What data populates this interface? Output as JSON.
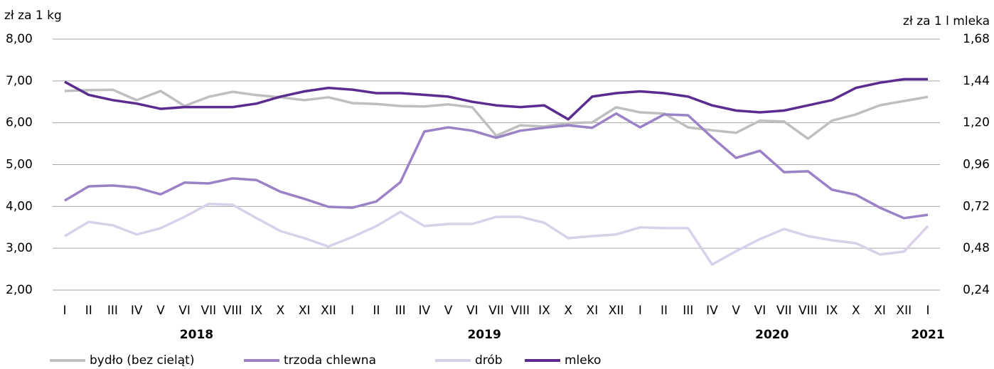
{
  "chart_data": {
    "type": "line",
    "y_label": "zł za 1 kg",
    "y2_label": "zł za 1 l mleka",
    "categories": [
      "I",
      "II",
      "III",
      "IV",
      "V",
      "VI",
      "VII",
      "VIII",
      "IX",
      "X",
      "XI",
      "XII",
      "I",
      "II",
      "III",
      "IV",
      "V",
      "VI",
      "VII",
      "VIII",
      "IX",
      "X",
      "XI",
      "XII",
      "I",
      "II",
      "III",
      "IV",
      "V",
      "VI",
      "VII",
      "VIII",
      "IX",
      "X",
      "XI",
      "XII",
      "I"
    ],
    "category_groups": [
      {
        "label": "2018",
        "from": 0,
        "to": 11
      },
      {
        "label": "2019",
        "from": 12,
        "to": 23
      },
      {
        "label": "2020",
        "from": 24,
        "to": 35
      },
      {
        "label": "2021",
        "from": 36,
        "to": 36
      }
    ],
    "ylim": [
      2,
      8
    ],
    "yticks": [
      {
        "value": 2,
        "label": "2,00"
      },
      {
        "value": 3,
        "label": "3,00"
      },
      {
        "value": 4,
        "label": "4,00"
      },
      {
        "value": 5,
        "label": "5,00"
      },
      {
        "value": 6,
        "label": "6,00"
      },
      {
        "value": 7,
        "label": "7,00"
      },
      {
        "value": 8,
        "label": "8,00"
      }
    ],
    "y2lim": [
      0.24,
      1.68
    ],
    "y2ticks": [
      {
        "value": 0.24,
        "label": "0,24"
      },
      {
        "value": 0.48,
        "label": "0,48"
      },
      {
        "value": 0.72,
        "label": "0,72"
      },
      {
        "value": 0.96,
        "label": "0,96"
      },
      {
        "value": 1.2,
        "label": "1,20"
      },
      {
        "value": 1.44,
        "label": "1,44"
      },
      {
        "value": 1.68,
        "label": "1,68"
      }
    ],
    "grid": true,
    "legend": "bottom",
    "series": [
      {
        "name": "bydło (bez cieląt)",
        "color": "#bfbfbf",
        "axis": "y",
        "values": [
          6.76,
          6.78,
          6.79,
          6.54,
          6.76,
          6.4,
          6.62,
          6.74,
          6.66,
          6.61,
          6.54,
          6.61,
          6.47,
          6.45,
          6.4,
          6.39,
          6.44,
          6.37,
          5.69,
          5.94,
          5.91,
          5.99,
          6.01,
          6.37,
          6.25,
          6.22,
          5.89,
          5.82,
          5.76,
          6.05,
          6.03,
          5.62,
          6.05,
          6.2,
          6.42,
          6.52,
          6.62
        ]
      },
      {
        "name": "trzoda chlewna",
        "color": "#9b82c6",
        "axis": "y",
        "values": [
          4.14,
          4.48,
          4.5,
          4.45,
          4.29,
          4.57,
          4.55,
          4.67,
          4.63,
          4.35,
          4.18,
          3.99,
          3.97,
          4.12,
          4.58,
          5.79,
          5.89,
          5.81,
          5.64,
          5.81,
          5.88,
          5.94,
          5.88,
          6.22,
          5.89,
          6.2,
          6.18,
          5.65,
          5.16,
          5.33,
          4.82,
          4.84,
          4.4,
          4.28,
          3.97,
          3.72,
          3.8
        ]
      },
      {
        "name": "drób",
        "color": "#d9d0ea",
        "axis": "y",
        "values": [
          3.29,
          3.63,
          3.55,
          3.33,
          3.48,
          3.75,
          4.06,
          4.04,
          3.72,
          3.41,
          3.24,
          3.04,
          3.27,
          3.53,
          3.87,
          3.53,
          3.58,
          3.58,
          3.75,
          3.75,
          3.61,
          3.24,
          3.29,
          3.33,
          3.5,
          3.48,
          3.48,
          2.61,
          2.93,
          3.22,
          3.46,
          3.29,
          3.19,
          3.12,
          2.85,
          2.92,
          3.53
        ]
      },
      {
        "name": "mleko",
        "color": "#5b2c8f",
        "axis": "y2",
        "values": [
          1.435,
          1.36,
          1.33,
          1.31,
          1.28,
          1.29,
          1.29,
          1.29,
          1.31,
          1.35,
          1.38,
          1.4,
          1.39,
          1.37,
          1.37,
          1.36,
          1.35,
          1.32,
          1.3,
          1.29,
          1.3,
          1.22,
          1.35,
          1.37,
          1.38,
          1.37,
          1.35,
          1.3,
          1.27,
          1.26,
          1.27,
          1.3,
          1.33,
          1.4,
          1.43,
          1.45,
          1.45
        ]
      }
    ]
  }
}
